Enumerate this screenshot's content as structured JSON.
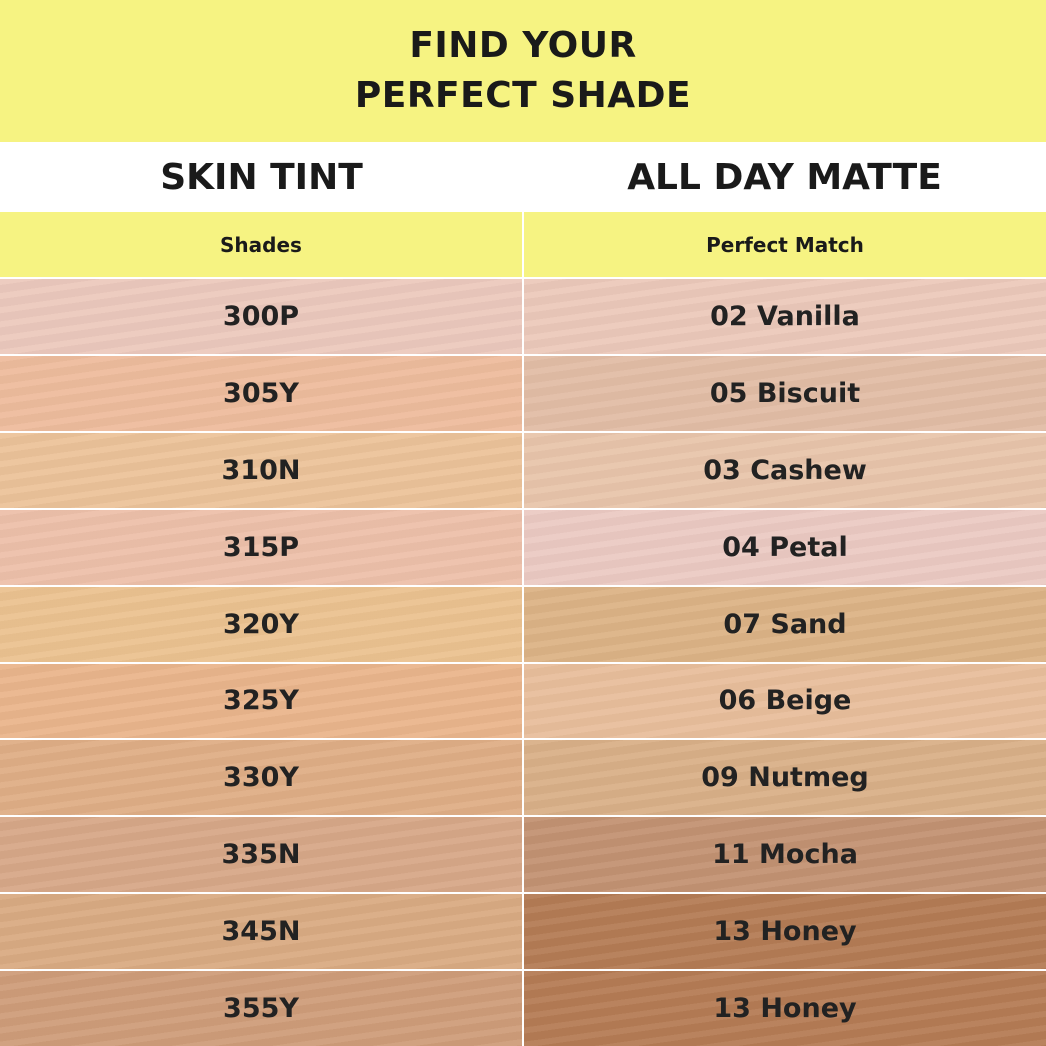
{
  "header": {
    "line1": "FIND YOUR",
    "line2": "PERFECT SHADE",
    "color": "#f6f382"
  },
  "products": {
    "left": "SKIN TINT",
    "right": "ALL DAY MATTE"
  },
  "subheaders": {
    "left": "Shades",
    "right": "Perfect Match"
  },
  "rows": [
    {
      "shade": "300P",
      "match": "02 Vanilla",
      "shade_color": "#ecc9bd",
      "match_color": "#ecc9ba"
    },
    {
      "shade": "305Y",
      "match": "05 Biscuit",
      "shade_color": "#eebc9d",
      "match_color": "#e2bda6"
    },
    {
      "shade": "310N",
      "match": "03 Cashew",
      "shade_color": "#ecc39a",
      "match_color": "#e8c5ab"
    },
    {
      "shade": "315P",
      "match": "04 Petal",
      "shade_color": "#edc0aa",
      "match_color": "#ebcac3"
    },
    {
      "shade": "320Y",
      "match": "07 Sand",
      "shade_color": "#ebc290",
      "match_color": "#dcb386"
    },
    {
      "shade": "325Y",
      "match": "06 Beige",
      "shade_color": "#eab58c",
      "match_color": "#e8be9c"
    },
    {
      "shade": "330Y",
      "match": "09 Nutmeg",
      "shade_color": "#dfae86",
      "match_color": "#d9b088"
    },
    {
      "shade": "335N",
      "match": "11 Mocha",
      "shade_color": "#d7a888",
      "match_color": "#c39273"
    },
    {
      "shade": "345N",
      "match": "13 Honey",
      "shade_color": "#d9ab83",
      "match_color": "#b47c55"
    },
    {
      "shade": "355Y",
      "match": "13 Honey",
      "shade_color": "#cf9d7a",
      "match_color": "#b57c55"
    }
  ]
}
